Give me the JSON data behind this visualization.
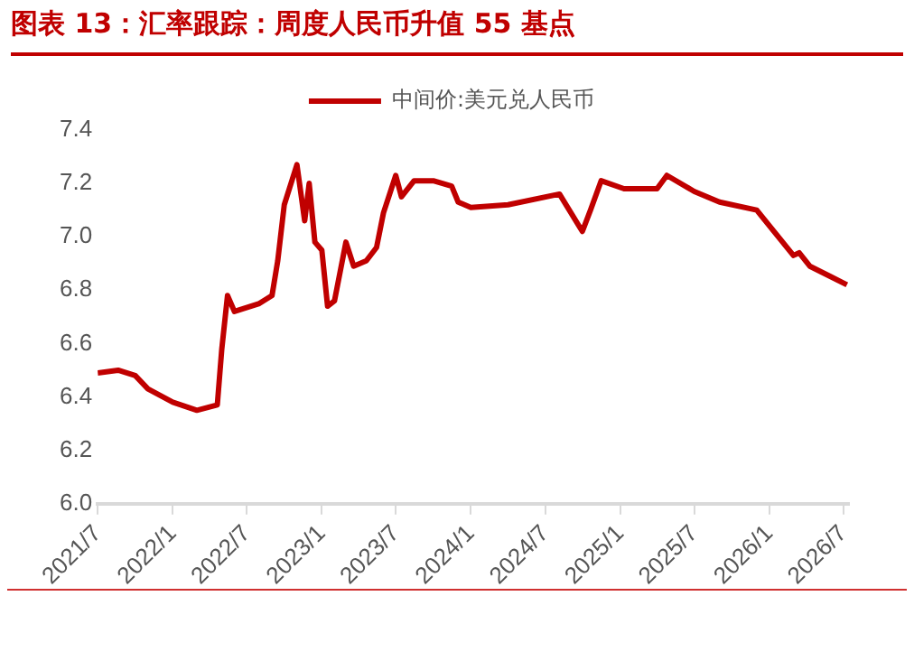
{
  "chart_data": {
    "type": "line",
    "title": "图表 13：汇率跟踪：周度人民币升值 55 基点",
    "x": [
      "2021-07-01",
      "2021-08-20",
      "2021-10-01",
      "2021-11-01",
      "2022-01-01",
      "2022-03-01",
      "2022-04-20",
      "2022-05-01",
      "2022-05-15",
      "2022-06-01",
      "2022-08-01",
      "2022-09-01",
      "2022-09-15",
      "2022-10-01",
      "2022-11-01",
      "2022-11-20",
      "2022-12-01",
      "2022-12-15",
      "2023-01-01",
      "2023-01-15",
      "2023-02-01",
      "2023-03-01",
      "2023-03-20",
      "2023-04-20",
      "2023-05-15",
      "2023-06-01",
      "2023-07-01",
      "2023-07-15",
      "2023-08-15",
      "2023-10-01",
      "2023-11-15",
      "2023-12-01",
      "2024-01-01",
      "2024-04-01",
      "2024-08-05",
      "2024-09-30",
      "2024-10-20",
      "2024-11-15",
      "2025-01-10",
      "2025-04-01",
      "2025-04-25",
      "2025-07-01",
      "2025-09-01",
      "2025-12-01",
      "2026-03-01",
      "2026-03-15",
      "2026-04-10",
      "2026-06-01",
      "2026-07-10"
    ],
    "series": [
      {
        "name": "中间价:美元兑人民币",
        "color": "#c00000",
        "values": [
          6.49,
          6.5,
          6.48,
          6.43,
          6.38,
          6.35,
          6.37,
          6.58,
          6.78,
          6.72,
          6.75,
          6.78,
          6.91,
          7.12,
          7.27,
          7.06,
          7.2,
          6.98,
          6.95,
          6.74,
          6.76,
          6.98,
          6.89,
          6.91,
          6.96,
          7.09,
          7.23,
          7.15,
          7.21,
          7.21,
          7.19,
          7.13,
          7.11,
          7.12,
          7.16,
          7.02,
          7.1,
          7.21,
          7.18,
          7.18,
          7.23,
          7.17,
          7.13,
          7.1,
          6.93,
          6.94,
          6.89,
          6.85,
          6.82
        ]
      }
    ],
    "xlim": [
      "2021-07-01",
      "2026-07-15"
    ],
    "xticks": [
      {
        "value": "2021-07-01",
        "label": "2021/7"
      },
      {
        "value": "2022-01-01",
        "label": "2022/1"
      },
      {
        "value": "2022-07-01",
        "label": "2022/7"
      },
      {
        "value": "2023-01-01",
        "label": "2023/1"
      },
      {
        "value": "2023-07-01",
        "label": "2023/7"
      },
      {
        "value": "2024-01-01",
        "label": "2024/1"
      },
      {
        "value": "2024-07-01",
        "label": "2024/7"
      },
      {
        "value": "2025-01-01",
        "label": "2025/1"
      },
      {
        "value": "2025-07-01",
        "label": "2025/7"
      },
      {
        "value": "2026-01-01",
        "label": "2026/1"
      },
      {
        "value": "2026-07-01",
        "label": "2026/7"
      }
    ],
    "ylim": [
      6.0,
      7.4
    ],
    "yticks": [
      {
        "value": 6.0,
        "label": "6.0"
      },
      {
        "value": 6.2,
        "label": "6.2"
      },
      {
        "value": 6.4,
        "label": "6.4"
      },
      {
        "value": 6.6,
        "label": "6.6"
      },
      {
        "value": 6.8,
        "label": "6.8"
      },
      {
        "value": 7.0,
        "label": "7.0"
      },
      {
        "value": 7.2,
        "label": "7.2"
      },
      {
        "value": 7.4,
        "label": "7.4"
      }
    ],
    "grid": false,
    "legend": "top",
    "marker": "none",
    "line_style": "solid"
  }
}
